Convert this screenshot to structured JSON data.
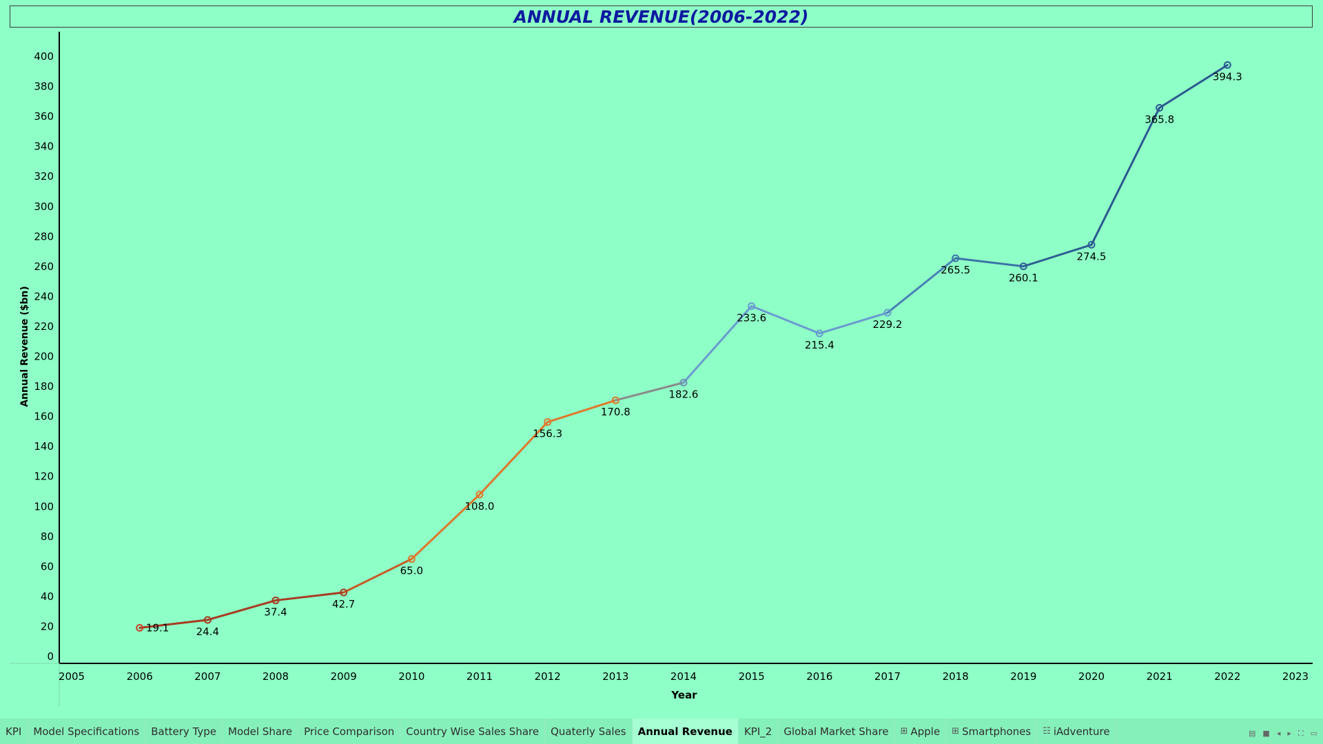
{
  "title": "ANNUAL REVENUE(2006-2022)",
  "chart_data": {
    "type": "line",
    "title": "ANNUAL REVENUE(2006-2022)",
    "xlabel": "Year",
    "ylabel": "Annual Revenue ($bn)",
    "x": [
      2006,
      2007,
      2008,
      2009,
      2010,
      2011,
      2012,
      2013,
      2014,
      2015,
      2016,
      2017,
      2018,
      2019,
      2020,
      2021,
      2022
    ],
    "values": [
      19.1,
      24.4,
      37.4,
      42.7,
      65.0,
      108.0,
      156.3,
      170.8,
      182.6,
      233.6,
      215.4,
      229.2,
      265.5,
      260.1,
      274.5,
      365.8,
      394.3
    ],
    "labels": [
      "19.1",
      "24.4",
      "37.4",
      "42.7",
      "65.0",
      "108.0",
      "156.3",
      "170.8",
      "182.6",
      "233.6",
      "215.4",
      "229.2",
      "265.5",
      "260.1",
      "274.5",
      "365.8",
      "394.3"
    ],
    "point_colors": [
      "#c8452a",
      "#a83a22",
      "#a83a22",
      "#a83a22",
      "#e0762c",
      "#e0762c",
      "#e0762c",
      "#e0762c",
      "#6f8fb0",
      "#6a9ad0",
      "#6a9ad0",
      "#6a9ad0",
      "#3c72a8",
      "#2e5d94",
      "#2e5d94",
      "#2b5790",
      "#2b5790"
    ],
    "segment_colors": [
      "#a83a22",
      "#a83a22",
      "#a83a22",
      "#c85a28",
      "#e0762c",
      "#e0762c",
      "#e0762c",
      "#8a8a8a",
      "#6a9ad0",
      "#6a9ad0",
      "#6a9ad0",
      "#4a80b8",
      "#3c72a8",
      "#2e5d94",
      "#2b5790",
      "#2b5790"
    ],
    "xlim": [
      2005,
      2023
    ],
    "ylim": [
      0,
      420
    ],
    "xticks": [
      2005,
      2006,
      2007,
      2008,
      2009,
      2010,
      2011,
      2012,
      2013,
      2014,
      2015,
      2016,
      2017,
      2018,
      2019,
      2020,
      2021,
      2022,
      2023
    ],
    "yticks": [
      0,
      20,
      40,
      60,
      80,
      100,
      120,
      140,
      160,
      180,
      200,
      220,
      240,
      260,
      280,
      300,
      320,
      340,
      360,
      380,
      400
    ],
    "grid": false,
    "legend": "none"
  },
  "tabs": [
    {
      "label": "KPI",
      "icon": ""
    },
    {
      "label": "Model Specifications",
      "icon": ""
    },
    {
      "label": "Battery Type",
      "icon": ""
    },
    {
      "label": "Model Share",
      "icon": ""
    },
    {
      "label": "Price Comparison",
      "icon": ""
    },
    {
      "label": "Country Wise Sales Share",
      "icon": ""
    },
    {
      "label": "Quaterly Sales",
      "icon": ""
    },
    {
      "label": "Annual Revenue",
      "icon": "",
      "active": true
    },
    {
      "label": "KPI_2",
      "icon": ""
    },
    {
      "label": "Global Market Share",
      "icon": ""
    },
    {
      "label": "Apple",
      "icon": "dashboard-grid-icon"
    },
    {
      "label": "Smartphones",
      "icon": "dashboard-grid-icon"
    },
    {
      "label": "iAdventure",
      "icon": "story-book-icon"
    }
  ],
  "colors": {
    "background": "#8effc6",
    "title": "#0d1aa0",
    "axis": "#000000"
  }
}
